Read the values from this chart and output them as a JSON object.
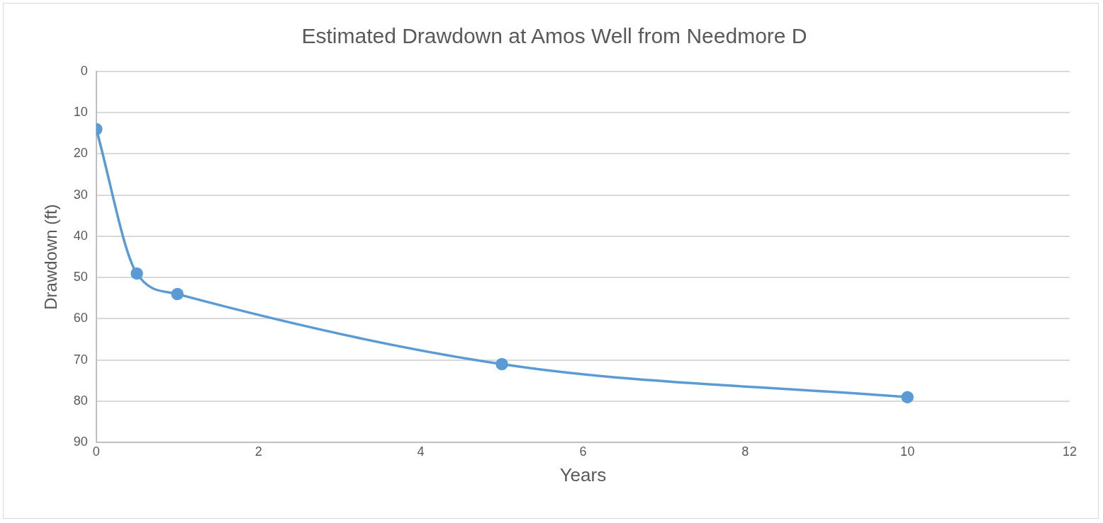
{
  "chart_data": {
    "type": "line",
    "title": "Estimated Drawdown at Amos Well from Needmore D",
    "xlabel": "Years",
    "ylabel": "Drawdown (ft)",
    "x": [
      0,
      0.5,
      1,
      5,
      10
    ],
    "series": [
      {
        "color": "#5b9bd5",
        "values": [
          14,
          49,
          54,
          71,
          79
        ]
      }
    ],
    "xlim": [
      0,
      12
    ],
    "xticks": [
      0,
      2,
      4,
      6,
      8,
      10,
      12
    ],
    "ylim": [
      90,
      0
    ],
    "yticks": [
      0,
      10,
      20,
      30,
      40,
      50,
      60,
      70,
      80,
      90
    ],
    "grid": "y",
    "legend": false,
    "marker": "circle",
    "line_style": "solid"
  }
}
